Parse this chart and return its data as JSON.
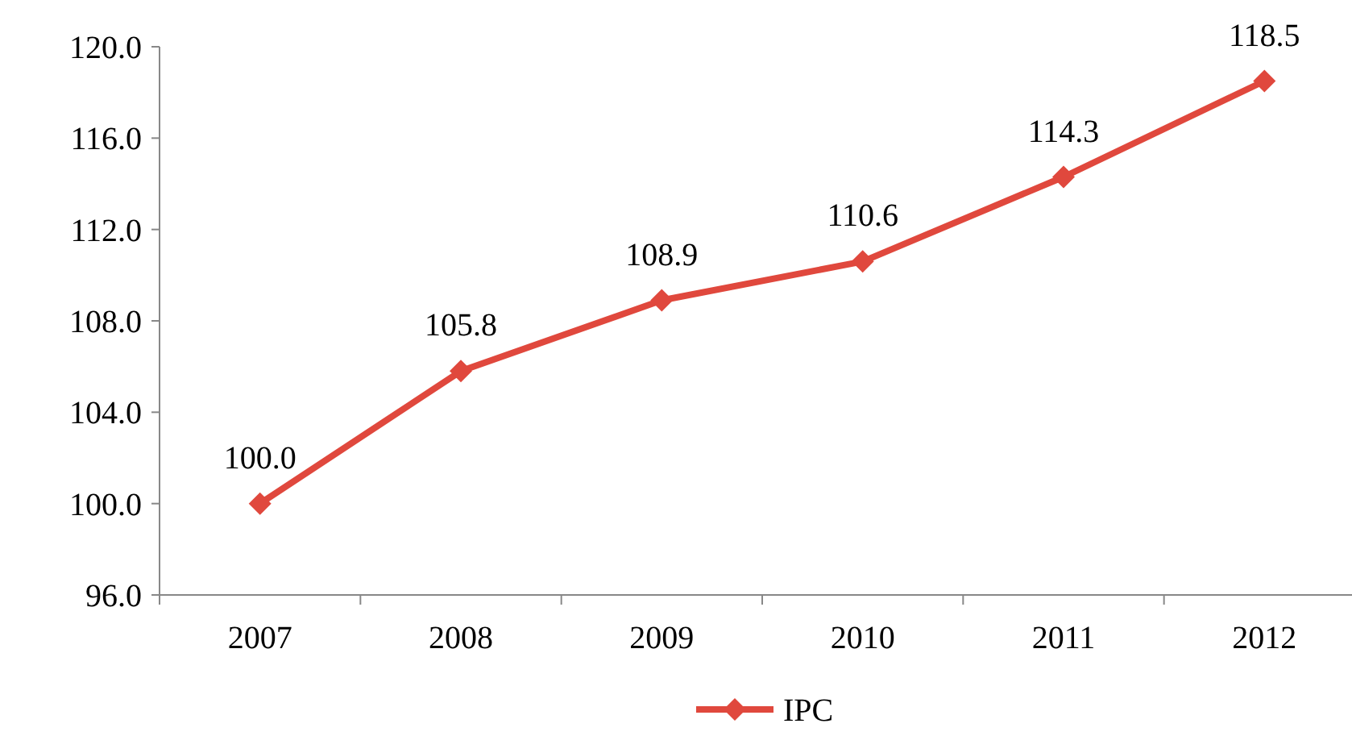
{
  "chart_data": {
    "type": "line",
    "categories": [
      "2007",
      "2008",
      "2009",
      "2010",
      "2011",
      "2012"
    ],
    "series": [
      {
        "name": "IPC",
        "color": "#e0483d",
        "values": [
          100.0,
          105.8,
          108.9,
          110.6,
          114.3,
          118.5
        ]
      }
    ],
    "ylim": [
      96,
      120
    ],
    "yticks": [
      {
        "value": 96,
        "label": "96.0"
      },
      {
        "value": 100,
        "label": "100.0"
      },
      {
        "value": 104,
        "label": "104.0"
      },
      {
        "value": 108,
        "label": "108.0"
      },
      {
        "value": 112,
        "label": "112.0"
      },
      {
        "value": 116,
        "label": "116.0"
      },
      {
        "value": 120,
        "label": "120.0"
      }
    ],
    "value_labels": [
      "100.0",
      "105.8",
      "108.9",
      "110.6",
      "114.3",
      "118.5"
    ],
    "legend": "bottom",
    "marker": "diamond",
    "line_style": "solid",
    "grid": false
  }
}
